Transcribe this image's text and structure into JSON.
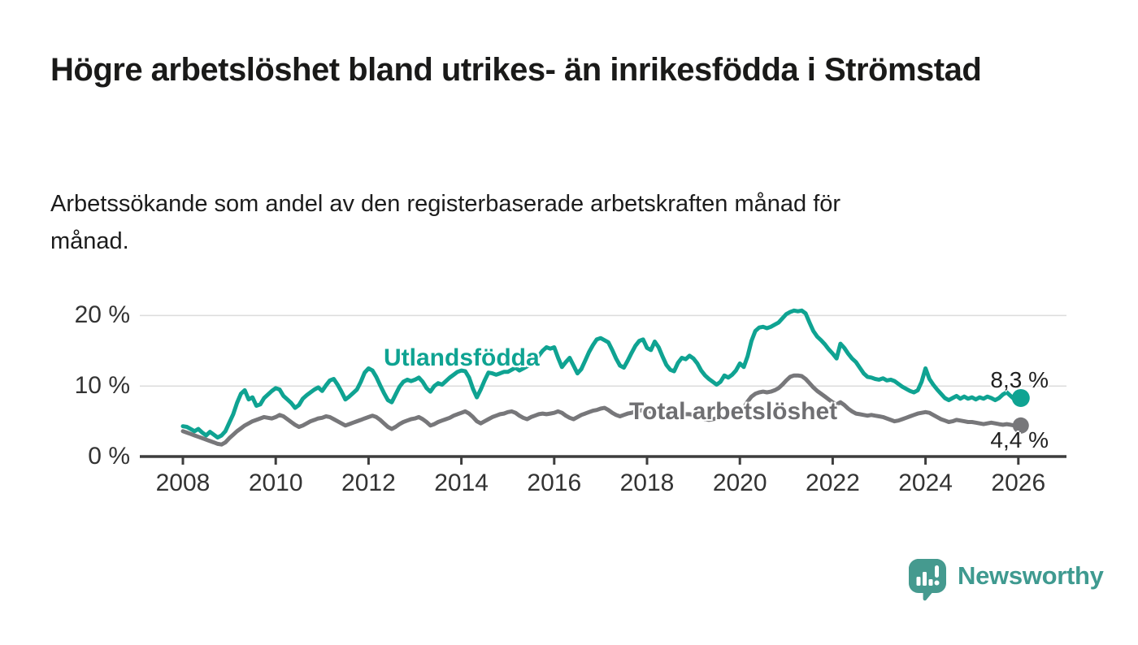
{
  "header": {
    "title": "Högre arbetslöshet bland utrikes- än inrikesfödda i Strömstad",
    "subtitle": "Arbetssökande som andel av den registerbaserade arbetskraften månad för månad."
  },
  "footer": {
    "brand": "Newsworthy"
  },
  "colors": {
    "accent_teal": "#0fa392",
    "series_gray": "#77777a",
    "brand_teal": "#3f9a90",
    "axis": "#3d3d3d",
    "grid": "#dcdcdc",
    "text": "#1a1a19"
  },
  "chart_data": {
    "type": "line",
    "title": "Högre arbetslöshet bland utrikes- än inrikesfödda i Strömstad",
    "subtitle": "Arbetssökande som andel av den registerbaserade arbetskraften månad för månad.",
    "legend": "inline-labels",
    "x_axis": {
      "tick_years": [
        2008,
        2010,
        2012,
        2014,
        2016,
        2018,
        2020,
        2022,
        2024,
        2026
      ],
      "start_year": 2008,
      "interval_months": 1,
      "range_years": [
        2007.1,
        2027.05
      ]
    },
    "y_axis": {
      "unit": "%",
      "ticks": [
        {
          "value": 0,
          "label": "0 %"
        },
        {
          "value": 10,
          "label": "10 %"
        },
        {
          "value": 20,
          "label": "20 %"
        }
      ],
      "range": [
        0,
        22
      ],
      "grid": true
    },
    "series": [
      {
        "name": "Utlandsfödda",
        "color": "#0fa392",
        "end_label": "8,3 %",
        "end_dot_radius": 11,
        "values": [
          4.3,
          4.2,
          3.9,
          3.6,
          3.9,
          3.4,
          3.0,
          3.5,
          3.1,
          2.7,
          3.0,
          3.6,
          4.8,
          6.0,
          7.6,
          8.9,
          9.4,
          8.1,
          8.4,
          7.2,
          7.4,
          8.3,
          8.8,
          9.3,
          9.7,
          9.5,
          8.6,
          8.1,
          7.6,
          6.9,
          7.3,
          8.2,
          8.7,
          9.1,
          9.5,
          9.8,
          9.3,
          10.1,
          10.8,
          11.0,
          10.2,
          9.2,
          8.1,
          8.5,
          9.0,
          9.5,
          10.6,
          11.9,
          12.5,
          12.2,
          11.3,
          10.1,
          9.0,
          8.0,
          7.7,
          8.8,
          9.9,
          10.6,
          10.9,
          10.7,
          10.9,
          11.2,
          10.6,
          9.7,
          9.2,
          10.0,
          10.4,
          10.2,
          10.7,
          11.2,
          11.6,
          12.0,
          12.2,
          12.1,
          11.2,
          9.6,
          8.4,
          9.5,
          10.8,
          11.9,
          11.8,
          11.6,
          11.8,
          12.0,
          12.0,
          12.3,
          12.6,
          12.2,
          12.5,
          12.8,
          13.1,
          13.6,
          14.3,
          15.0,
          15.5,
          15.3,
          15.5,
          14.0,
          12.7,
          13.4,
          14.0,
          12.9,
          11.8,
          12.4,
          13.6,
          14.8,
          15.8,
          16.6,
          16.8,
          16.5,
          16.2,
          15.1,
          13.9,
          12.9,
          12.6,
          13.6,
          14.7,
          15.7,
          16.4,
          16.6,
          15.4,
          15.1,
          16.3,
          15.5,
          14.2,
          13.0,
          12.3,
          12.1,
          13.3,
          14.0,
          13.8,
          14.3,
          13.9,
          13.2,
          12.2,
          11.5,
          11.0,
          10.6,
          10.2,
          10.6,
          11.5,
          11.2,
          11.6,
          12.2,
          13.2,
          12.7,
          14.2,
          16.4,
          17.8,
          18.3,
          18.4,
          18.2,
          18.4,
          18.7,
          19.0,
          19.6,
          20.2,
          20.5,
          20.7,
          20.6,
          20.7,
          20.3,
          19.0,
          17.8,
          17.0,
          16.5,
          15.9,
          15.2,
          14.6,
          13.9,
          16.0,
          15.4,
          14.6,
          13.9,
          13.4,
          12.6,
          11.8,
          11.3,
          11.2,
          11.0,
          10.9,
          11.1,
          10.8,
          10.9,
          10.7,
          10.3,
          9.9,
          9.6,
          9.3,
          9.1,
          9.4,
          10.6,
          12.5,
          11.0,
          10.2,
          9.5,
          8.9,
          8.3,
          8.0,
          8.3,
          8.6,
          8.2,
          8.5,
          8.2,
          8.4,
          8.1,
          8.4,
          8.2,
          8.5,
          8.3,
          8.0,
          8.3,
          8.8,
          9.1,
          8.6,
          8.1,
          8.3
        ]
      },
      {
        "name": "Total arbetslöshet",
        "color": "#77777a",
        "end_label": "4,4 %",
        "end_dot_radius": 10,
        "values": [
          3.6,
          3.4,
          3.2,
          3.0,
          2.8,
          2.6,
          2.4,
          2.2,
          2.0,
          1.8,
          1.7,
          2.0,
          2.6,
          3.1,
          3.6,
          4.0,
          4.4,
          4.7,
          5.0,
          5.2,
          5.4,
          5.6,
          5.5,
          5.4,
          5.6,
          5.9,
          5.7,
          5.3,
          4.9,
          4.5,
          4.2,
          4.4,
          4.7,
          5.0,
          5.2,
          5.4,
          5.5,
          5.7,
          5.6,
          5.3,
          5.0,
          4.7,
          4.4,
          4.6,
          4.8,
          5.0,
          5.2,
          5.4,
          5.6,
          5.8,
          5.6,
          5.2,
          4.7,
          4.2,
          3.9,
          4.2,
          4.6,
          4.9,
          5.1,
          5.3,
          5.4,
          5.6,
          5.3,
          4.9,
          4.4,
          4.6,
          4.9,
          5.1,
          5.3,
          5.5,
          5.8,
          6.0,
          6.2,
          6.4,
          6.1,
          5.6,
          5.0,
          4.7,
          5.0,
          5.3,
          5.6,
          5.8,
          6.0,
          6.1,
          6.3,
          6.4,
          6.2,
          5.8,
          5.5,
          5.3,
          5.6,
          5.8,
          6.0,
          6.1,
          6.0,
          6.1,
          6.2,
          6.4,
          6.2,
          5.8,
          5.5,
          5.3,
          5.6,
          5.9,
          6.1,
          6.3,
          6.5,
          6.6,
          6.8,
          6.9,
          6.6,
          6.2,
          5.9,
          5.7,
          5.9,
          6.1,
          6.2,
          6.4,
          6.5,
          6.6,
          6.5,
          6.4,
          6.2,
          5.9,
          5.6,
          5.4,
          5.5,
          5.6,
          5.8,
          5.9,
          6.0,
          6.0,
          5.9,
          5.7,
          5.5,
          5.3,
          5.2,
          5.3,
          5.4,
          5.5,
          5.7,
          5.8,
          6.0,
          6.2,
          6.5,
          6.9,
          7.8,
          8.5,
          8.9,
          9.1,
          9.2,
          9.1,
          9.2,
          9.4,
          9.7,
          10.2,
          10.8,
          11.3,
          11.5,
          11.5,
          11.4,
          11.0,
          10.4,
          9.8,
          9.3,
          8.9,
          8.5,
          8.1,
          7.7,
          7.4,
          7.7,
          7.3,
          6.8,
          6.4,
          6.1,
          6.0,
          5.9,
          5.8,
          5.9,
          5.8,
          5.7,
          5.6,
          5.4,
          5.2,
          5.0,
          5.1,
          5.3,
          5.5,
          5.7,
          5.9,
          6.1,
          6.2,
          6.3,
          6.2,
          5.9,
          5.6,
          5.3,
          5.1,
          4.9,
          5.0,
          5.2,
          5.1,
          5.0,
          4.9,
          4.9,
          4.8,
          4.7,
          4.6,
          4.7,
          4.8,
          4.7,
          4.6,
          4.5,
          4.6,
          4.5,
          4.4,
          4.4
        ]
      }
    ]
  }
}
